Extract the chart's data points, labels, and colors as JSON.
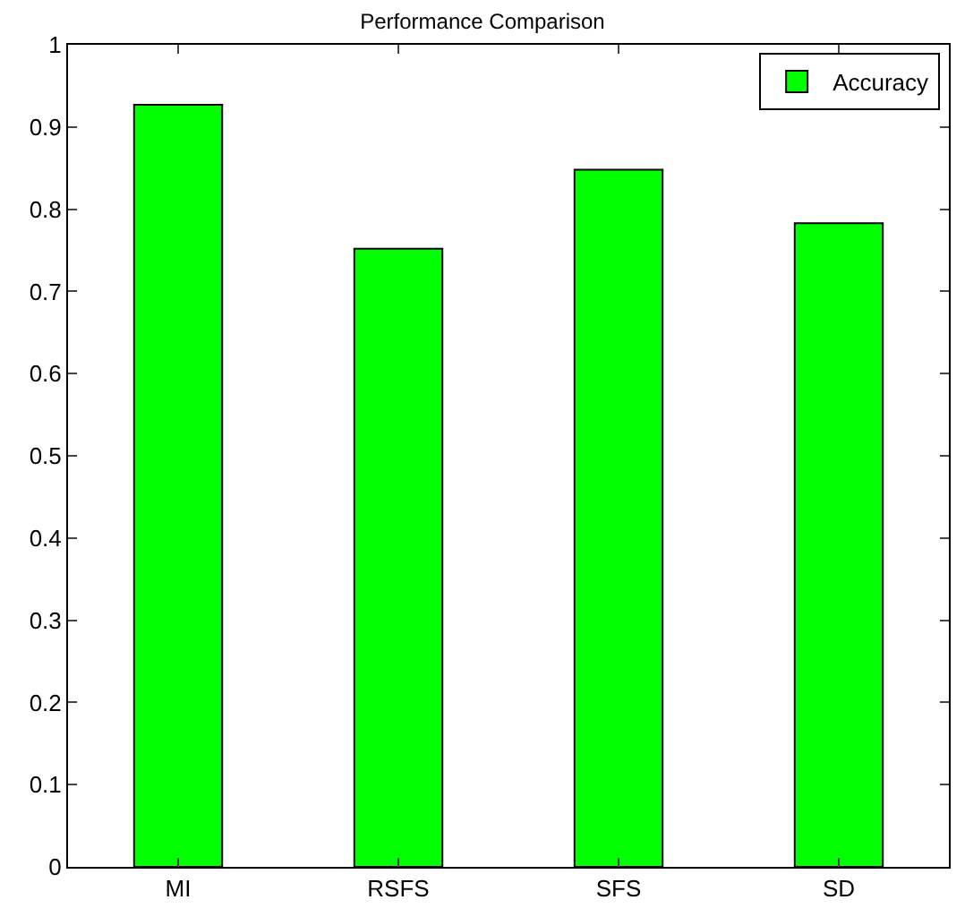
{
  "chart_data": {
    "type": "bar",
    "title": "Performance Comparison",
    "categories": [
      "MI",
      "RSFS",
      "SFS",
      "SD"
    ],
    "series": [
      {
        "name": "Accuracy",
        "color": "#00ff00",
        "values": [
          0.927,
          0.752,
          0.848,
          0.783
        ]
      }
    ],
    "ylim": [
      0,
      1
    ],
    "yticks": [
      0,
      0.1,
      0.2,
      0.3,
      0.4,
      0.5,
      0.6,
      0.7,
      0.8,
      0.9,
      1
    ],
    "legend": "top right"
  }
}
